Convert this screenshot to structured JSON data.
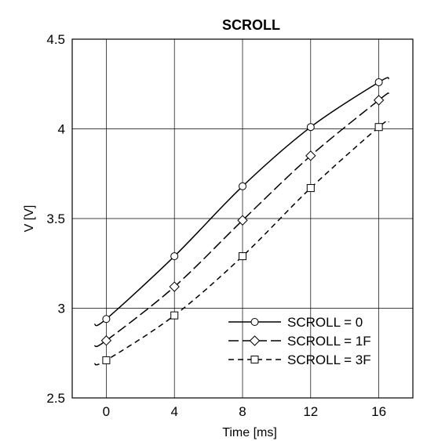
{
  "chart_data": {
    "type": "line",
    "title": "SCROLL",
    "xlabel": "Time [ms]",
    "ylabel": "V [V]",
    "xlim": [
      -2,
      18
    ],
    "ylim": [
      2.5,
      4.5
    ],
    "xticks": [
      0,
      4,
      8,
      12,
      16
    ],
    "yticks": [
      2.5,
      3,
      3.5,
      4,
      4.5
    ],
    "xtick_labels": [
      "0",
      "4",
      "8",
      "12",
      "16"
    ],
    "ytick_labels": [
      "2.5",
      "3",
      "3.5",
      "4",
      "4.5"
    ],
    "grid": true,
    "legend_position": "bottom-right",
    "series": [
      {
        "name": "SCROLL = 0",
        "marker": "circle",
        "dash": "solid",
        "x": [
          0,
          4,
          8,
          12,
          16
        ],
        "y": [
          2.94,
          3.29,
          3.68,
          4.01,
          4.26
        ],
        "x_line": [
          -0.7,
          16.6
        ],
        "y_line": [
          2.91,
          4.28
        ]
      },
      {
        "name": "SCROLL = 1F",
        "marker": "diamond",
        "dash": "long-dash",
        "x": [
          0,
          4,
          8,
          12,
          16
        ],
        "y": [
          2.82,
          3.12,
          3.49,
          3.85,
          4.16
        ],
        "x_line": [
          -0.7,
          16.6
        ],
        "y_line": [
          2.79,
          4.2
        ]
      },
      {
        "name": "SCROLL = 3F",
        "marker": "square",
        "dash": "short-dash",
        "x": [
          0,
          4,
          8,
          12,
          16
        ],
        "y": [
          2.71,
          2.96,
          3.29,
          3.67,
          4.01
        ],
        "x_line": [
          -0.7,
          16.6
        ],
        "y_line": [
          2.69,
          4.04
        ]
      }
    ]
  }
}
